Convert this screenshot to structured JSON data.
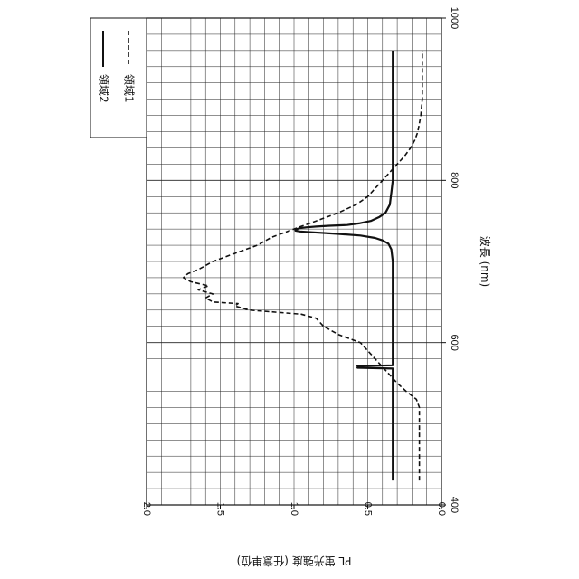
{
  "chart_data": {
    "type": "line",
    "orientation": "rotated-90-clockwise",
    "title": "",
    "xlabel": "波長 (nm)",
    "ylabel": "PL 蛍光強度 (任意単位)",
    "xlim": [
      400,
      1000
    ],
    "ylim": [
      0.0,
      2.0
    ],
    "x_ticks": [
      400,
      600,
      800,
      1000
    ],
    "x_tick_labels": [
      "400",
      "600",
      "800",
      "1000"
    ],
    "y_ticks": [
      0.0,
      0.5,
      1.0,
      1.5,
      2.0
    ],
    "y_tick_labels": [
      "0.0",
      "0.5",
      "1.0",
      "1.5",
      "2.0"
    ],
    "grid": true,
    "legend_placement": "top-right",
    "series": [
      {
        "name": "領域2",
        "style": "solid",
        "color": "#111111",
        "x": [
          430,
          500,
          560,
          568,
          569,
          570,
          571,
          572,
          575,
          600,
          650,
          700,
          715,
          722,
          726,
          729,
          732,
          734,
          736,
          737,
          738,
          739,
          740,
          741,
          742,
          743,
          744,
          745,
          747,
          750,
          755,
          760,
          770,
          785,
          800,
          850,
          900,
          960
        ],
        "y": [
          0.33,
          0.33,
          0.33,
          0.33,
          0.57,
          0.56,
          0.57,
          0.33,
          0.33,
          0.33,
          0.33,
          0.33,
          0.34,
          0.36,
          0.4,
          0.45,
          0.55,
          0.7,
          0.88,
          0.96,
          0.99,
          0.99,
          0.98,
          0.96,
          0.92,
          0.85,
          0.76,
          0.64,
          0.56,
          0.48,
          0.42,
          0.38,
          0.35,
          0.34,
          0.33,
          0.33,
          0.33,
          0.33
        ]
      },
      {
        "name": "領域1",
        "style": "dashed",
        "color": "#111111",
        "x": [
          430,
          520,
          530,
          540,
          550,
          560,
          570,
          580,
          590,
          600,
          610,
          620,
          630,
          635,
          640,
          645,
          648,
          650,
          655,
          660,
          665,
          670,
          675,
          680,
          685,
          690,
          700,
          710,
          720,
          730,
          740,
          750,
          760,
          770,
          780,
          790,
          800,
          810,
          820,
          830,
          840,
          850,
          860,
          880,
          900,
          930,
          960
        ],
        "y": [
          0.15,
          0.15,
          0.17,
          0.24,
          0.3,
          0.35,
          0.4,
          0.45,
          0.5,
          0.55,
          0.7,
          0.8,
          0.85,
          0.95,
          1.3,
          1.4,
          1.38,
          1.55,
          1.6,
          1.55,
          1.65,
          1.58,
          1.7,
          1.75,
          1.72,
          1.65,
          1.55,
          1.4,
          1.25,
          1.15,
          1.0,
          0.85,
          0.7,
          0.58,
          0.5,
          0.45,
          0.4,
          0.35,
          0.3,
          0.25,
          0.21,
          0.18,
          0.16,
          0.14,
          0.13,
          0.13,
          0.13
        ]
      }
    ]
  }
}
